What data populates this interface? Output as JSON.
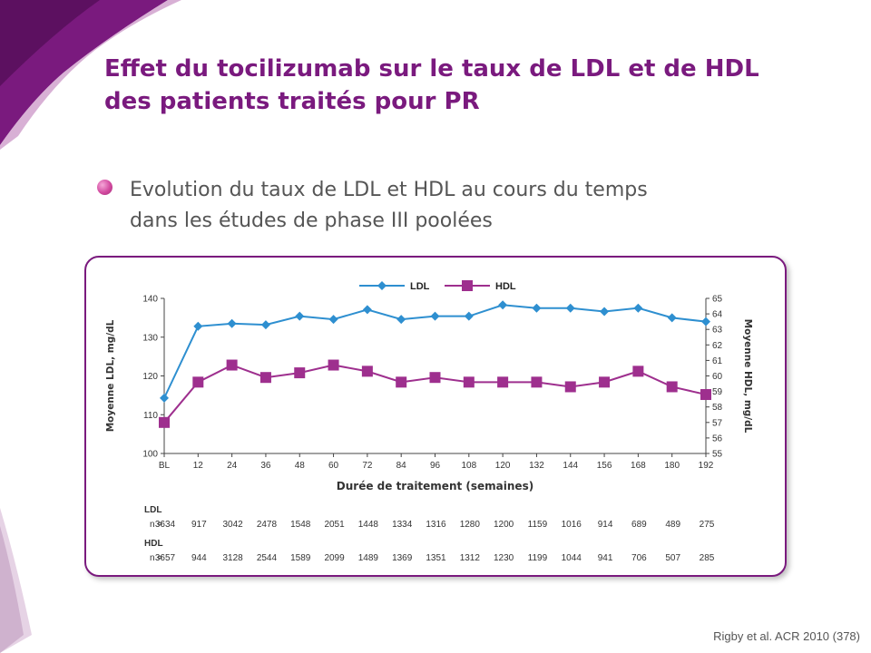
{
  "slide": {
    "title_line1": "Effet du tocilizumab sur le taux de LDL et de HDL",
    "title_line2": "des patients traités pour PR",
    "bullet_line1": "Evolution du taux de LDL et HDL au cours du temps",
    "bullet_line2": "dans les études de phase III poolées",
    "source": "Rigby et al. ACR 2010 (378)"
  },
  "colors": {
    "title": "#7a1a7e",
    "ldl": "#2e8fd0",
    "hdl": "#9e2f8e",
    "box_border": "#7a1a7e"
  },
  "chart_data": {
    "type": "line",
    "categories": [
      "BL",
      "12",
      "24",
      "36",
      "48",
      "60",
      "72",
      "84",
      "96",
      "108",
      "120",
      "132",
      "144",
      "156",
      "168",
      "180",
      "192"
    ],
    "xlabel": "Durée de traitement (semaines)",
    "ylabel": "Moyenne LDL, mg/dL",
    "y2label": "Moyenne HDL, mg/dL",
    "ylim": [
      100,
      140
    ],
    "y2lim": [
      55,
      65
    ],
    "yticks": [
      100,
      110,
      120,
      130,
      140
    ],
    "y2ticks": [
      55,
      56,
      57,
      58,
      59,
      60,
      61,
      62,
      63,
      64,
      65
    ],
    "legend_position": "top-center",
    "series": [
      {
        "name": "LDL",
        "axis": "left",
        "marker": "diamond",
        "color": "#2e8fd0",
        "values": [
          114.3,
          132.8,
          133.5,
          133.2,
          135.4,
          134.6,
          137.1,
          134.6,
          135.4,
          135.4,
          138.3,
          137.5,
          137.5,
          136.6,
          137.5,
          135.0,
          134.0
        ]
      },
      {
        "name": "HDL",
        "axis": "right",
        "marker": "square",
        "color": "#9e2f8e",
        "values": [
          57.0,
          59.6,
          60.7,
          59.9,
          60.2,
          60.7,
          60.3,
          59.6,
          59.9,
          59.6,
          59.6,
          59.6,
          59.3,
          59.6,
          60.3,
          59.3,
          58.8
        ]
      }
    ],
    "n_table": {
      "ldl_label": "LDL",
      "hdl_label": "HDL",
      "n_prefix": "n =",
      "ldl_n": [
        "3634",
        "917",
        "3042",
        "2478",
        "1548",
        "2051",
        "1448",
        "1334",
        "1316",
        "1280",
        "1200",
        "1159",
        "1016",
        "914",
        "689",
        "489",
        "275"
      ],
      "hdl_n": [
        "3657",
        "944",
        "3128",
        "2544",
        "1589",
        "2099",
        "1489",
        "1369",
        "1351",
        "1312",
        "1230",
        "1199",
        "1044",
        "941",
        "706",
        "507",
        "285"
      ]
    }
  }
}
